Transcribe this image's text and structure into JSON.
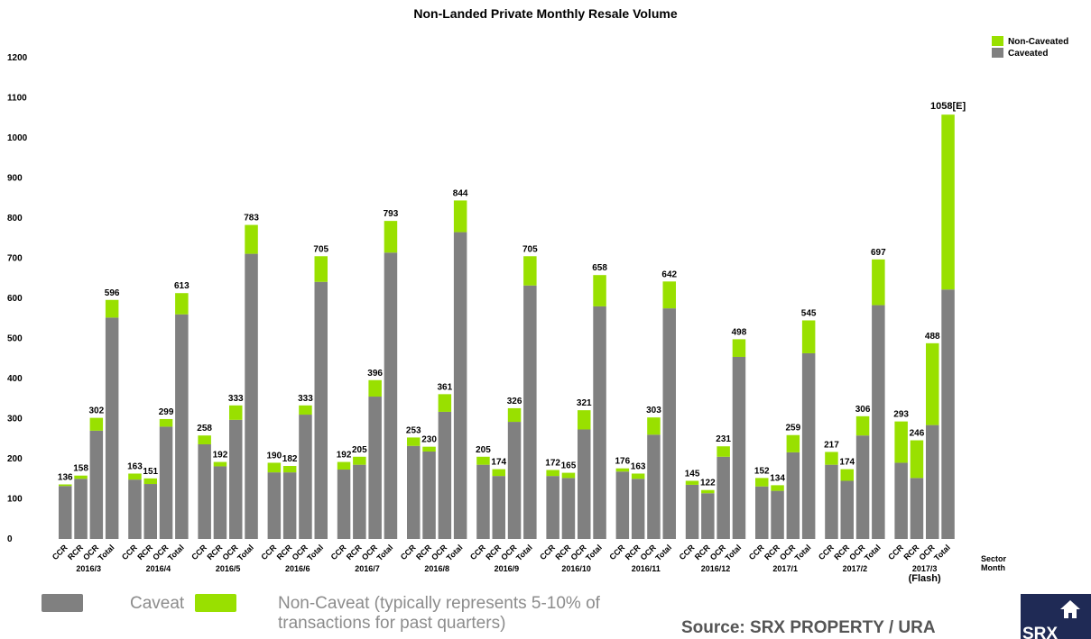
{
  "chart_data": {
    "type": "bar",
    "title": "Non-Landed Private Monthly Resale Volume",
    "ylim": [
      0,
      1200
    ],
    "yticks": [
      0,
      100,
      200,
      300,
      400,
      500,
      600,
      700,
      800,
      900,
      1000,
      1100,
      1200
    ],
    "sectors": [
      "CCR",
      "RCR",
      "OCR",
      "Total"
    ],
    "months": [
      "2016/3",
      "2016/4",
      "2016/5",
      "2016/6",
      "2016/7",
      "2016/8",
      "2016/9",
      "2016/10",
      "2016/11",
      "2016/12",
      "2017/1",
      "2017/2",
      "2017/3"
    ],
    "month_notes": [
      "",
      "",
      "",
      "",
      "",
      "",
      "",
      "",
      "",
      "",
      "",
      "",
      "(Flash)"
    ],
    "axis_corner_label_sector": "Sector",
    "axis_corner_label_month": "Month",
    "series": [
      {
        "name": "Caveated",
        "color": "#808080",
        "values": [
          [
            132,
            150,
            270,
            552
          ],
          [
            148,
            137,
            280,
            560
          ],
          [
            236,
            181,
            297,
            711
          ],
          [
            166,
            166,
            310,
            641
          ],
          [
            173,
            185,
            355,
            714
          ],
          [
            232,
            218,
            317,
            765
          ],
          [
            185,
            157,
            292,
            632
          ],
          [
            157,
            152,
            273,
            580
          ],
          [
            168,
            150,
            260,
            575
          ],
          [
            135,
            114,
            205,
            454
          ],
          [
            131,
            120,
            216,
            463
          ],
          [
            185,
            145,
            258,
            583
          ],
          [
            190,
            152,
            284,
            622
          ]
        ]
      },
      {
        "name": "Non-Caveated",
        "color": "#99e000",
        "values": [
          [
            4,
            8,
            32,
            44
          ],
          [
            15,
            14,
            19,
            53
          ],
          [
            22,
            11,
            36,
            72
          ],
          [
            24,
            16,
            23,
            64
          ],
          [
            19,
            20,
            41,
            79
          ],
          [
            21,
            12,
            44,
            79
          ],
          [
            20,
            17,
            34,
            73
          ],
          [
            15,
            13,
            48,
            78
          ],
          [
            8,
            13,
            43,
            67
          ],
          [
            10,
            8,
            26,
            44
          ],
          [
            21,
            14,
            43,
            82
          ],
          [
            32,
            29,
            48,
            114
          ],
          [
            103,
            94,
            204,
            436
          ]
        ]
      }
    ],
    "total_labels": [
      [
        "136",
        "158",
        "302",
        "596"
      ],
      [
        "163",
        "151",
        "299",
        "613"
      ],
      [
        "258",
        "192",
        "333",
        "783"
      ],
      [
        "190",
        "182",
        "333",
        "705"
      ],
      [
        "192",
        "205",
        "396",
        "793"
      ],
      [
        "253",
        "230",
        "361",
        "844"
      ],
      [
        "205",
        "174",
        "326",
        "705"
      ],
      [
        "172",
        "165",
        "321",
        "658"
      ],
      [
        "176",
        "163",
        "303",
        "642"
      ],
      [
        "145",
        "122",
        "231",
        "498"
      ],
      [
        "152",
        "134",
        "259",
        "545"
      ],
      [
        "217",
        "174",
        "306",
        "697"
      ],
      [
        "293",
        "246",
        "488",
        "1058[E]"
      ]
    ],
    "estimate_value": 1058,
    "legend": [
      "Non-Caveated",
      "Caveated"
    ],
    "legend_position": "top-right"
  },
  "bottom_legend": {
    "caveat_label": "Caveat",
    "noncaveat_label_line1": "Non-Caveat (typically represents 5-10% of",
    "noncaveat_label_line2": "transactions for past quarters)"
  },
  "source_text": "Source:  SRX PROPERTY / URA",
  "logo": {
    "text": "SRX",
    "color": "#1f2a55",
    "icon": "house-icon"
  }
}
